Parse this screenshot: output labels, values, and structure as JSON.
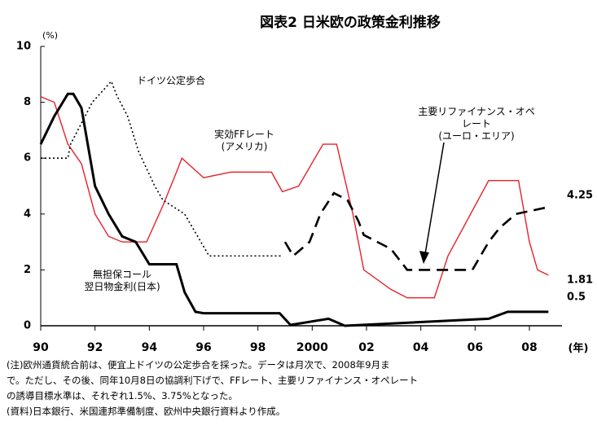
{
  "chart_data": {
    "type": "line",
    "title": "図表2 日米欧の政策金利推移",
    "y_unit": "(%)",
    "x_unit": "(年)",
    "xlim": [
      1990,
      2009.2
    ],
    "xticks": [
      {
        "value": 1990,
        "label": "90"
      },
      {
        "value": 1992,
        "label": "92"
      },
      {
        "value": 1994,
        "label": "94"
      },
      {
        "value": 1996,
        "label": "96"
      },
      {
        "value": 1998,
        "label": "98"
      },
      2000,
      {
        "value": 2002,
        "label": "02"
      },
      {
        "value": 2004,
        "label": "04"
      },
      {
        "value": 2006,
        "label": "06"
      },
      {
        "value": 2008,
        "label": "08"
      }
    ],
    "ylim": [
      0,
      10
    ],
    "yticks": [
      0,
      2,
      4,
      6,
      8,
      10
    ],
    "series": [
      {
        "name": "実効FFレート\n(アメリカ)",
        "color": "#e8202a",
        "style": "solid",
        "width": 1.4,
        "x": [
          1990,
          1990.5,
          1991,
          1991.5,
          1992,
          1992.5,
          1993,
          1993.9,
          1994.5,
          1995,
          1995.2,
          1996,
          1997,
          1998.5,
          1998.9,
          1999.5,
          2000.4,
          2000.9,
          2001.5,
          2001.9,
          2002.9,
          2003.5,
          2004.5,
          2005,
          2006.5,
          2007.6,
          2008,
          2008.3,
          2008.7
        ],
        "values": [
          8.2,
          8.0,
          6.5,
          5.8,
          4.0,
          3.2,
          3.0,
          3.0,
          4.3,
          5.5,
          6.0,
          5.3,
          5.5,
          5.5,
          4.8,
          5.0,
          6.5,
          6.5,
          4.0,
          2.0,
          1.3,
          1.0,
          1.0,
          2.5,
          5.2,
          5.2,
          3.0,
          2.0,
          1.81
        ]
      },
      {
        "name": "無担保コール\n翌日物金利(日本)",
        "color": "#000000",
        "style": "solid",
        "width": 3,
        "x": [
          1990,
          1990.5,
          1991,
          1991.2,
          1991.5,
          1992,
          1992.5,
          1993,
          1993.5,
          1994,
          1995,
          1995.3,
          1995.7,
          1996,
          1998.8,
          1999.2,
          2000.6,
          2001.2,
          2006.5,
          2007.2,
          2008.7
        ],
        "values": [
          6.5,
          7.5,
          8.3,
          8.3,
          7.8,
          5.0,
          4.0,
          3.2,
          3.0,
          2.2,
          2.2,
          1.2,
          0.5,
          0.45,
          0.45,
          0.03,
          0.25,
          0.0,
          0.25,
          0.5,
          0.5
        ]
      },
      {
        "name": "ドイツ公定歩合",
        "color": "#000000",
        "style": "dotted",
        "width": 1.6,
        "x": [
          1990,
          1991,
          1991.1,
          1991.9,
          1992.6,
          1992.8,
          1993.2,
          1993.6,
          1994.2,
          1994.5,
          1995.3,
          1995.9,
          1996.2,
          1998.9
        ],
        "values": [
          6.0,
          6.0,
          6.5,
          8.0,
          8.75,
          8.25,
          7.5,
          6.25,
          5.0,
          4.5,
          4.0,
          3.0,
          2.5,
          2.5
        ]
      },
      {
        "name": "主要リファイナンス・オペレート\n(ユーロ・エリア)",
        "color": "#000000",
        "style": "dashed",
        "width": 2.6,
        "x": [
          1999,
          1999.3,
          1999.9,
          2000.3,
          2000.8,
          2001.3,
          2001.7,
          2001.9,
          2002.9,
          2003.5,
          2005.9,
          2006.5,
          2006.9,
          2007.5,
          2008.7
        ],
        "values": [
          3.0,
          2.5,
          3.0,
          4.0,
          4.75,
          4.5,
          3.75,
          3.25,
          2.75,
          2.0,
          2.0,
          3.0,
          3.5,
          4.0,
          4.25
        ]
      }
    ],
    "notes": [
      "(注)欧州通貨統合前は、便宜上ドイツの公定歩合を採った。データは月次で、2008年9月ま",
      "で。ただし、その後、同年10月8日の協調利下げで、FFレート、主要リファイナンス・オペレート",
      "の誘導目標水準は、それぞれ1.5%、3.75%となった。",
      "(資料)日本銀行、米国連邦準備制度、欧州中央銀行資料より作成。"
    ]
  }
}
